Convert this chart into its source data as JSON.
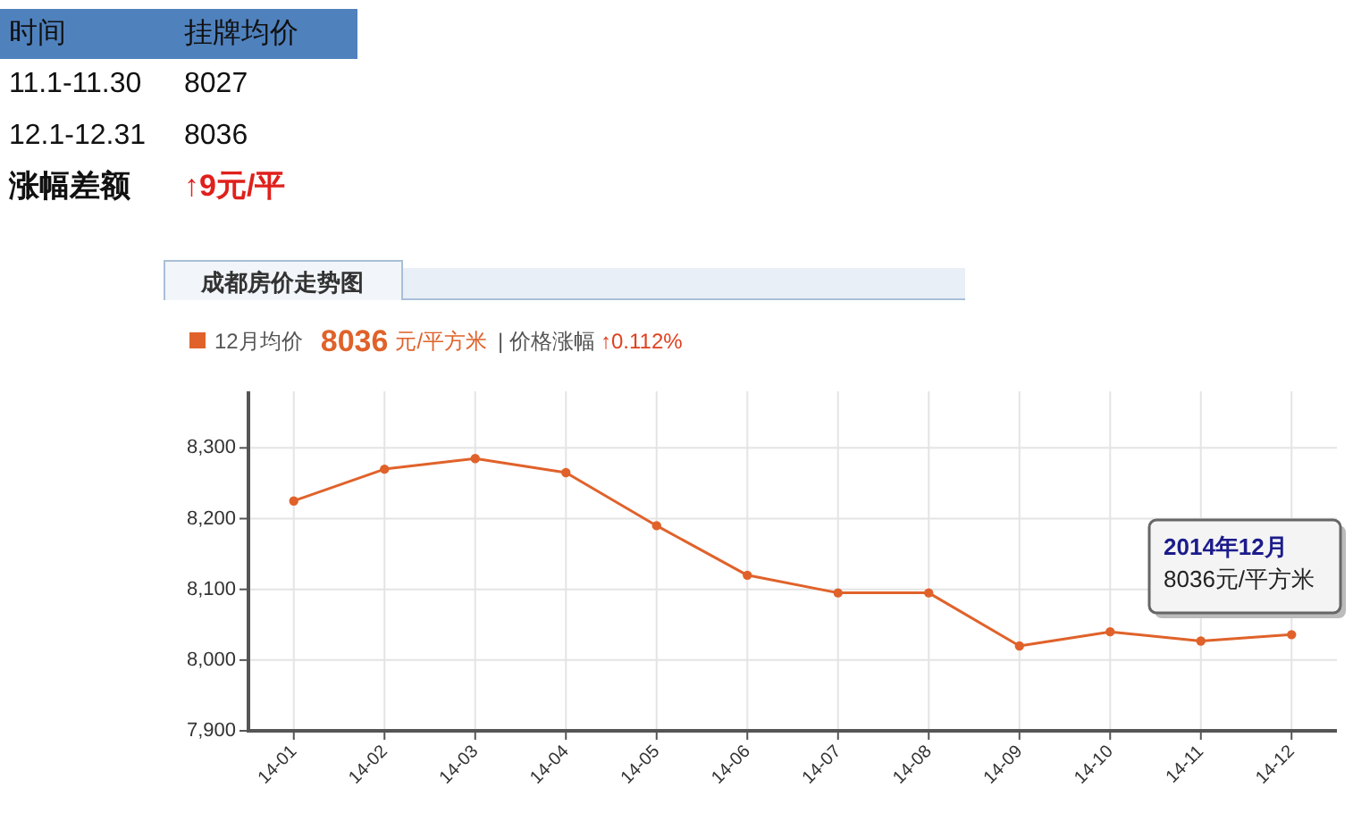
{
  "chart_data": {
    "type": "line",
    "title": "成都房价走势图",
    "categories": [
      "14-01",
      "14-02",
      "14-03",
      "14-04",
      "14-05",
      "14-06",
      "14-07",
      "14-08",
      "14-09",
      "14-10",
      "14-11",
      "14-12"
    ],
    "values": [
      8225,
      8270,
      8285,
      8265,
      8190,
      8120,
      8095,
      8095,
      8020,
      8040,
      8027,
      8036
    ],
    "color": "#e0622a",
    "ylim": [
      7900,
      8380
    ],
    "yticks": [
      {
        "value": 7900,
        "label": "7,900"
      },
      {
        "value": 8000,
        "label": "8,000"
      },
      {
        "value": 8100,
        "label": "8,100"
      },
      {
        "value": 8200,
        "label": "8,200"
      },
      {
        "value": 8300,
        "label": "8,300"
      }
    ],
    "grid": true,
    "marker": "circle",
    "line_style": "solid",
    "annotations": [
      "时间",
      "挂牌均价",
      "11.1-11.30",
      "8027",
      "12.1-12.31",
      "8036",
      "涨幅差额",
      "↑9元/平",
      "12月均价",
      "8036",
      "元/平方米",
      "| 价格涨幅",
      "↑0.112%",
      "2014年12月",
      "8036元/平方米"
    ]
  }
}
